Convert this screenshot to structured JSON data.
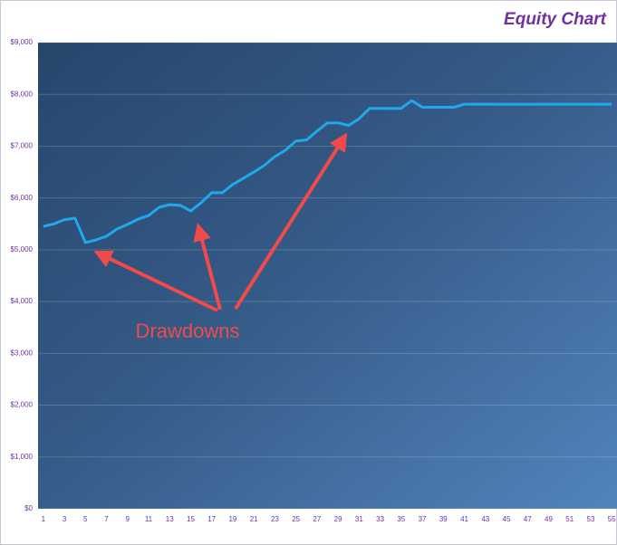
{
  "chart_data": {
    "type": "line",
    "title": "Equity Chart",
    "categories": [
      "1",
      null,
      "3",
      null,
      "5",
      null,
      "7",
      null,
      "9",
      null,
      "11",
      null,
      "13",
      null,
      "15",
      null,
      "17",
      null,
      "19",
      null,
      "21",
      null,
      "23",
      null,
      "25",
      null,
      "27",
      null,
      "29",
      null,
      "31",
      null,
      "33",
      null,
      "35",
      null,
      "37",
      null,
      "39",
      null,
      "41",
      null,
      "43",
      null,
      "45",
      null,
      "47",
      null,
      "49",
      null,
      "51",
      null,
      "53",
      null,
      "55"
    ],
    "values": [
      5450,
      5500,
      5580,
      5610,
      5140,
      5190,
      5260,
      5400,
      5490,
      5590,
      5660,
      5820,
      5870,
      5860,
      5750,
      5910,
      6100,
      6100,
      6260,
      6380,
      6500,
      6630,
      6800,
      6920,
      7100,
      7120,
      7290,
      7450,
      7450,
      7400,
      7530,
      7730,
      7730,
      7730,
      7730,
      7880,
      7750,
      7750,
      7750,
      7750,
      7810,
      7810,
      7810,
      7810,
      7810,
      7810,
      7810,
      7810,
      7810,
      7810,
      7810,
      7810,
      7810,
      7810,
      7810
    ],
    "color": "#1fa9ec",
    "ylim": [
      0,
      9000
    ],
    "yticks": [
      {
        "value": 0,
        "label": "$0"
      },
      {
        "value": 1000,
        "label": "$1,000"
      },
      {
        "value": 2000,
        "label": "$2,000"
      },
      {
        "value": 3000,
        "label": "$3,000"
      },
      {
        "value": 4000,
        "label": "$4,000"
      },
      {
        "value": 5000,
        "label": "$5,000"
      },
      {
        "value": 6000,
        "label": "$6,000"
      },
      {
        "value": 7000,
        "label": "$7,000"
      },
      {
        "value": 8000,
        "label": "$8,000"
      },
      {
        "value": 9000,
        "label": "$9,000"
      }
    ],
    "grid": true,
    "annotation": "Drawdowns"
  }
}
